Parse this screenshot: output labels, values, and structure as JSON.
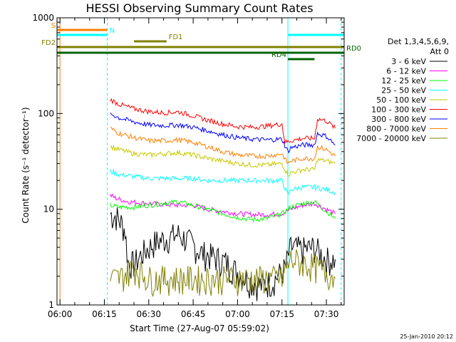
{
  "chart_data": {
    "type": "line",
    "title": "HESSI Observing Summary Count Rates",
    "xlabel": "Start Time (27-Aug-07 05:59:02)",
    "ylabel": "Count Rate (s⁻¹ detector⁻¹)",
    "yscale": "log",
    "ylim": [
      1,
      1000
    ],
    "xlim": [
      "05:59",
      "07:36"
    ],
    "x_ticks": [
      "06:00",
      "06:15",
      "06:30",
      "06:45",
      "07:00",
      "07:15",
      "07:30"
    ],
    "y_ticks": [
      "1",
      "10",
      "100",
      "1000"
    ],
    "legend_header": [
      "Det 1,3,4,5,6,9,",
      "Att 0"
    ],
    "legend_placement": "right",
    "timestamp": "25-Jan-2010 20:12",
    "series": [
      {
        "name": "3 - 6 keV",
        "color": "#000000",
        "x": [
          "06:17",
          "06:18",
          "06:19",
          "06:21",
          "06:22",
          "06:23",
          "06:25",
          "06:28",
          "06:32",
          "06:36",
          "06:40",
          "06:44",
          "06:48",
          "06:52",
          "06:56",
          "07:00",
          "07:04",
          "07:08",
          "07:12",
          "07:16",
          "07:18",
          "07:22",
          "07:26",
          "07:30",
          "07:33"
        ],
        "y": [
          9,
          8.5,
          8.5,
          7,
          6,
          2.8,
          2.7,
          3.5,
          4.5,
          5,
          5.5,
          4.5,
          3.5,
          3.2,
          2.8,
          2.2,
          1.8,
          1.6,
          1.8,
          2.4,
          4,
          3.8,
          4,
          3,
          3
        ]
      },
      {
        "name": "6 - 12 keV",
        "color": "#ff00ff",
        "x": [
          "06:17",
          "06:19",
          "06:23",
          "06:30",
          "06:40",
          "06:45",
          "06:50",
          "06:55",
          "07:00",
          "07:05",
          "07:10",
          "07:15",
          "07:18",
          "07:22",
          "07:26",
          "07:30",
          "07:33"
        ],
        "y": [
          14,
          13,
          12,
          11.5,
          11,
          11,
          10,
          9.5,
          9,
          8.8,
          8.8,
          9,
          10,
          11,
          11.5,
          10,
          9
        ]
      },
      {
        "name": "12 - 25 keV",
        "color": "#00ff00",
        "x": [
          "06:17",
          "06:20",
          "06:25",
          "06:30",
          "06:35",
          "06:40",
          "06:45",
          "06:50",
          "06:55",
          "07:00",
          "07:05",
          "07:10",
          "07:15",
          "07:18",
          "07:22",
          "07:26",
          "07:30",
          "07:33"
        ],
        "y": [
          11,
          10.5,
          10.5,
          11,
          11.5,
          12,
          11,
          10,
          9,
          8.2,
          7.8,
          8,
          9,
          10.5,
          11.5,
          12,
          9.5,
          8
        ]
      },
      {
        "name": "25 - 50 keV",
        "color": "#00ffff",
        "x": [
          "06:17",
          "06:20",
          "06:25",
          "06:30",
          "06:35",
          "06:40",
          "06:45",
          "06:50",
          "06:55",
          "07:00",
          "07:05",
          "07:10",
          "07:15",
          "07:17",
          "07:18",
          "07:22",
          "07:26",
          "07:30",
          "07:33"
        ],
        "y": [
          25,
          23,
          22,
          21,
          21,
          21,
          21,
          20,
          20,
          20,
          20,
          20,
          20,
          14,
          16,
          17,
          17,
          16,
          15
        ]
      },
      {
        "name": "50 - 100 keV",
        "color": "#c8c800",
        "x": [
          "06:17",
          "06:20",
          "06:25",
          "06:30",
          "06:35",
          "06:40",
          "06:45",
          "06:50",
          "06:55",
          "07:00",
          "07:05",
          "07:10",
          "07:15",
          "07:17",
          "07:18",
          "07:22",
          "07:26",
          "07:27",
          "07:30",
          "07:33"
        ],
        "y": [
          45,
          42,
          38,
          37,
          38,
          39,
          37,
          34,
          32,
          30,
          29,
          29,
          30,
          23,
          24,
          26,
          26,
          33,
          32,
          30
        ]
      },
      {
        "name": "100 - 300 keV",
        "color": "#ff0000",
        "x": [
          "06:17",
          "06:20",
          "06:25",
          "06:30",
          "06:35",
          "06:40",
          "06:45",
          "06:50",
          "06:55",
          "07:00",
          "07:05",
          "07:10",
          "07:15",
          "07:16",
          "07:18",
          "07:22",
          "07:26",
          "07:27",
          "07:30",
          "07:33"
        ],
        "y": [
          140,
          125,
          112,
          105,
          102,
          104,
          95,
          85,
          78,
          73,
          72,
          74,
          78,
          50,
          52,
          55,
          55,
          88,
          84,
          70
        ]
      },
      {
        "name": "300 - 800 keV",
        "color": "#0000ff",
        "x": [
          "06:17",
          "06:20",
          "06:25",
          "06:30",
          "06:35",
          "06:40",
          "06:45",
          "06:50",
          "06:55",
          "07:00",
          "07:05",
          "07:10",
          "07:15",
          "07:17",
          "07:18",
          "07:22",
          "07:26",
          "07:27",
          "07:30",
          "07:33"
        ],
        "y": [
          100,
          90,
          82,
          76,
          75,
          76,
          72,
          66,
          60,
          56,
          54,
          53,
          54,
          40,
          44,
          47,
          47,
          62,
          58,
          47
        ]
      },
      {
        "name": "800 - 7000 keV",
        "color": "#ff8000",
        "x": [
          "06:17",
          "06:20",
          "06:25",
          "06:30",
          "06:35",
          "06:40",
          "06:45",
          "06:50",
          "06:55",
          "07:00",
          "07:05",
          "07:10",
          "07:15",
          "07:17",
          "07:18",
          "07:22",
          "07:26",
          "07:27",
          "07:30",
          "07:33"
        ],
        "y": [
          70,
          62,
          56,
          52,
          52,
          53,
          50,
          45,
          40,
          37,
          36,
          36,
          38,
          30,
          32,
          34,
          34,
          45,
          42,
          36
        ]
      },
      {
        "name": "7000 - 20000 keV",
        "color": "#808000",
        "x": [
          "06:17",
          "06:20",
          "06:25",
          "06:30",
          "06:40",
          "06:50",
          "07:00",
          "07:10",
          "07:15",
          "07:18",
          "07:25",
          "07:30",
          "07:33"
        ],
        "y": [
          1.9,
          1.9,
          2.5,
          1.9,
          1.9,
          1.9,
          1.9,
          1.9,
          1.9,
          3,
          2.6,
          2.2,
          1.9
        ]
      }
    ],
    "status_bars": [
      {
        "label": "S",
        "color": "#ff8000",
        "start": "05:59",
        "end": "06:16"
      },
      {
        "label": "N",
        "color": "#00ffff",
        "start": "05:59",
        "end": "06:16"
      },
      {
        "label": "",
        "color": "#00ffff",
        "start": "07:17",
        "end": "07:36"
      },
      {
        "label": "FD1",
        "color": "#808000",
        "start": "06:25",
        "end": "06:36"
      },
      {
        "label": "FD2",
        "color": "#808000",
        "start": "05:59",
        "end": "07:36"
      },
      {
        "label": "RD0",
        "color": "#006400",
        "start": "05:59",
        "end": "07:36"
      },
      {
        "label": "RD4",
        "color": "#006400",
        "start": "07:17",
        "end": "07:26"
      }
    ],
    "vertical_markers": [
      {
        "time": "05:59",
        "color": "#00ffff",
        "style": "solid"
      },
      {
        "time": "06:16",
        "color": "#00ffff",
        "style": "dashed"
      },
      {
        "time": "07:17",
        "color": "#00ffff",
        "style": "solid"
      },
      {
        "time": "07:35",
        "color": "#00ffff",
        "style": "dashed"
      },
      {
        "time": "06:00",
        "color": "#ff8000",
        "style": "solid"
      }
    ]
  }
}
